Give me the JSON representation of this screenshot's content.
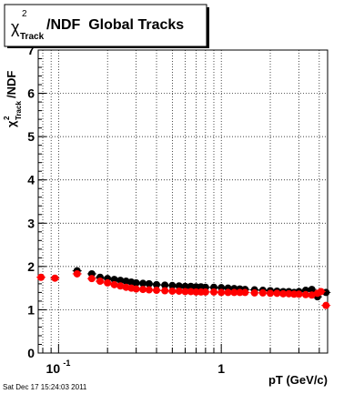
{
  "title": {
    "symbol": "χ",
    "superscript": "2",
    "subscript": "Track",
    "text": "/NDF  Global Tracks"
  },
  "datestamp": "Sat Dec 17 15:24:03 2011",
  "chart_data": {
    "type": "scatter",
    "title": "χ²Track/NDF  Global Tracks",
    "xlabel": "pT (GeV/c)",
    "ylabel": "χ²Track/NDF",
    "xscale": "log",
    "xlim": [
      0.075,
      4.5
    ],
    "ylim": [
      0,
      7
    ],
    "grid": true,
    "x_tick_labels": [
      {
        "value": 0.1,
        "base": "10",
        "exp": "-1"
      },
      {
        "value": 1,
        "base": "1",
        "exp": ""
      }
    ],
    "y_ticks": [
      0,
      1,
      2,
      3,
      4,
      5,
      6,
      7
    ],
    "colors": {
      "series_black": "#000000",
      "series_red": "#ff0000",
      "title_border": "#000000"
    },
    "series": [
      {
        "color": "#000000",
        "points": [
          [
            0.13,
            1.9
          ],
          [
            0.16,
            1.83
          ],
          [
            0.18,
            1.75
          ],
          [
            0.2,
            1.72
          ],
          [
            0.22,
            1.7
          ],
          [
            0.24,
            1.68
          ],
          [
            0.26,
            1.66
          ],
          [
            0.28,
            1.64
          ],
          [
            0.3,
            1.62
          ],
          [
            0.33,
            1.61
          ],
          [
            0.36,
            1.6
          ],
          [
            0.4,
            1.58
          ],
          [
            0.45,
            1.57
          ],
          [
            0.5,
            1.56
          ],
          [
            0.55,
            1.55
          ],
          [
            0.6,
            1.54
          ],
          [
            0.65,
            1.54
          ],
          [
            0.7,
            1.53
          ],
          [
            0.75,
            1.53
          ],
          [
            0.8,
            1.52
          ],
          [
            0.9,
            1.52
          ],
          [
            1.0,
            1.51
          ],
          [
            1.1,
            1.5
          ],
          [
            1.2,
            1.49
          ],
          [
            1.3,
            1.48
          ],
          [
            1.4,
            1.47
          ],
          [
            1.6,
            1.46
          ],
          [
            1.8,
            1.45
          ],
          [
            2.0,
            1.44
          ],
          [
            2.2,
            1.43
          ],
          [
            2.4,
            1.42
          ],
          [
            2.6,
            1.42
          ],
          [
            2.8,
            1.4
          ],
          [
            3.0,
            1.42
          ],
          [
            3.3,
            1.45
          ],
          [
            3.6,
            1.47
          ],
          [
            3.9,
            1.3
          ],
          [
            4.4,
            1.4
          ]
        ]
      },
      {
        "color": "#ff0000",
        "points": [
          [
            0.078,
            1.75
          ],
          [
            0.095,
            1.73
          ],
          [
            0.13,
            1.83
          ],
          [
            0.16,
            1.72
          ],
          [
            0.18,
            1.66
          ],
          [
            0.2,
            1.62
          ],
          [
            0.22,
            1.58
          ],
          [
            0.24,
            1.55
          ],
          [
            0.26,
            1.52
          ],
          [
            0.28,
            1.5
          ],
          [
            0.3,
            1.48
          ],
          [
            0.33,
            1.47
          ],
          [
            0.36,
            1.46
          ],
          [
            0.4,
            1.45
          ],
          [
            0.45,
            1.44
          ],
          [
            0.5,
            1.43
          ],
          [
            0.55,
            1.43
          ],
          [
            0.6,
            1.42
          ],
          [
            0.65,
            1.42
          ],
          [
            0.7,
            1.41
          ],
          [
            0.75,
            1.41
          ],
          [
            0.8,
            1.41
          ],
          [
            0.9,
            1.41
          ],
          [
            1.0,
            1.4
          ],
          [
            1.1,
            1.4
          ],
          [
            1.2,
            1.4
          ],
          [
            1.3,
            1.4
          ],
          [
            1.4,
            1.4
          ],
          [
            1.6,
            1.39
          ],
          [
            1.8,
            1.39
          ],
          [
            2.0,
            1.38
          ],
          [
            2.2,
            1.38
          ],
          [
            2.4,
            1.37
          ],
          [
            2.6,
            1.37
          ],
          [
            2.8,
            1.36
          ],
          [
            3.0,
            1.36
          ],
          [
            3.3,
            1.35
          ],
          [
            3.6,
            1.34
          ],
          [
            3.9,
            1.38
          ],
          [
            4.1,
            1.42
          ],
          [
            4.4,
            1.1
          ]
        ]
      }
    ]
  }
}
